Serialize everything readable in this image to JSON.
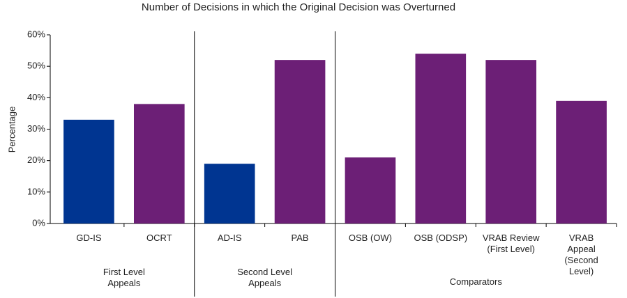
{
  "chart_data": {
    "type": "bar",
    "title": "Number of Decisions in which the Original Decision was Overturned",
    "y_label": "Percentage",
    "categories": [
      "GD-IS",
      "OCRT",
      "AD-IS",
      "PAB",
      "OSB (OW)",
      "OSB (ODSP)",
      "VRAB Review\n(First Level)",
      "VRAB Appeal\n(Second Level)"
    ],
    "values": [
      33,
      38,
      19,
      52,
      21,
      54,
      52,
      39
    ],
    "colors": [
      "#003591",
      "#6c1f76",
      "#003591",
      "#6c1f76",
      "#6c1f76",
      "#6c1f76",
      "#6c1f76",
      "#6c1f76"
    ],
    "groups": [
      {
        "label": "First Level\nAppeals",
        "count": 2
      },
      {
        "label": "Second Level\nAppeals",
        "count": 2
      },
      {
        "label": "Comparators",
        "count": 4
      }
    ],
    "ylim": [
      0,
      60
    ],
    "yticks": [
      {
        "value": 0,
        "label": "0%"
      },
      {
        "value": 10,
        "label": "10%"
      },
      {
        "value": 20,
        "label": "20%"
      },
      {
        "value": 30,
        "label": "30%"
      },
      {
        "value": 40,
        "label": "40%"
      },
      {
        "value": 50,
        "label": "50%"
      },
      {
        "value": 60,
        "label": "60%"
      }
    ],
    "grid": false
  }
}
